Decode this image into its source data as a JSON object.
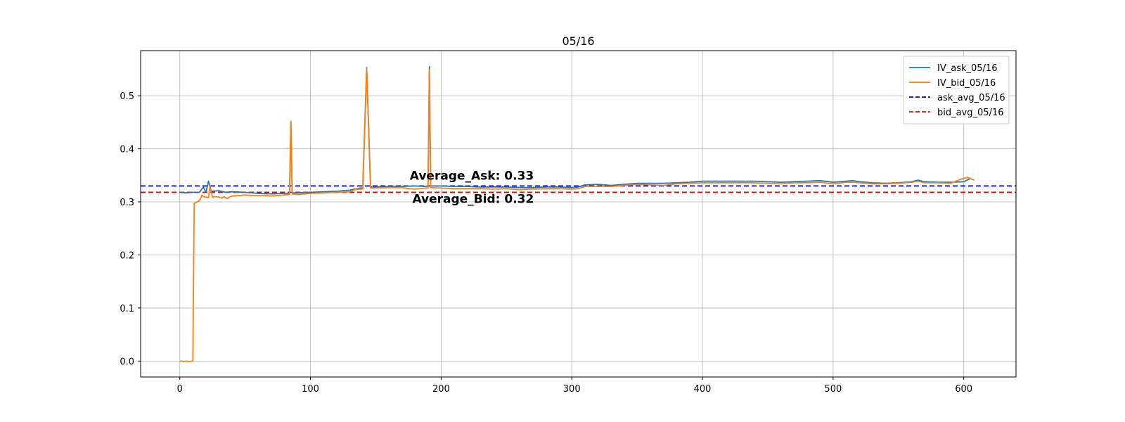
{
  "chart_data": {
    "type": "line",
    "title": "05/16",
    "xlabel": "",
    "ylabel": "",
    "xlim": [
      -30,
      640
    ],
    "ylim": [
      -0.03,
      0.585
    ],
    "xticks": [
      0,
      100,
      200,
      300,
      400,
      500,
      600
    ],
    "yticks": [
      0.0,
      0.1,
      0.2,
      0.3,
      0.4,
      0.5
    ],
    "ytick_labels": [
      "0.0",
      "0.1",
      "0.2",
      "0.3",
      "0.4",
      "0.5"
    ],
    "grid": true,
    "legend_position": "top-right",
    "series": [
      {
        "name": "IV_ask_05/16",
        "style": "solid",
        "color": "#1f77b4",
        "points": [
          [
            0,
            0.318
          ],
          [
            5,
            0.317
          ],
          [
            10,
            0.318
          ],
          [
            15,
            0.318
          ],
          [
            18,
            0.328
          ],
          [
            20,
            0.318
          ],
          [
            22,
            0.339
          ],
          [
            24,
            0.32
          ],
          [
            30,
            0.321
          ],
          [
            35,
            0.318
          ],
          [
            40,
            0.319
          ],
          [
            50,
            0.318
          ],
          [
            60,
            0.316
          ],
          [
            70,
            0.315
          ],
          [
            80,
            0.316
          ],
          [
            84,
            0.316
          ],
          [
            85,
            0.45
          ],
          [
            86,
            0.317
          ],
          [
            90,
            0.317
          ],
          [
            100,
            0.318
          ],
          [
            110,
            0.319
          ],
          [
            120,
            0.32
          ],
          [
            130,
            0.322
          ],
          [
            138,
            0.326
          ],
          [
            140,
            0.326
          ],
          [
            143,
            0.553
          ],
          [
            146,
            0.328
          ],
          [
            150,
            0.328
          ],
          [
            160,
            0.329
          ],
          [
            170,
            0.329
          ],
          [
            180,
            0.33
          ],
          [
            188,
            0.329
          ],
          [
            190,
            0.33
          ],
          [
            191,
            0.555
          ],
          [
            192,
            0.33
          ],
          [
            200,
            0.33
          ],
          [
            210,
            0.329
          ],
          [
            220,
            0.329
          ],
          [
            230,
            0.328
          ],
          [
            240,
            0.328
          ],
          [
            250,
            0.328
          ],
          [
            260,
            0.327
          ],
          [
            270,
            0.327
          ],
          [
            280,
            0.328
          ],
          [
            290,
            0.328
          ],
          [
            300,
            0.327
          ],
          [
            305,
            0.328
          ],
          [
            310,
            0.332
          ],
          [
            320,
            0.333
          ],
          [
            330,
            0.331
          ],
          [
            340,
            0.333
          ],
          [
            350,
            0.335
          ],
          [
            360,
            0.335
          ],
          [
            370,
            0.335
          ],
          [
            380,
            0.336
          ],
          [
            390,
            0.337
          ],
          [
            400,
            0.339
          ],
          [
            420,
            0.339
          ],
          [
            440,
            0.339
          ],
          [
            450,
            0.338
          ],
          [
            460,
            0.337
          ],
          [
            470,
            0.338
          ],
          [
            480,
            0.339
          ],
          [
            490,
            0.34
          ],
          [
            500,
            0.337
          ],
          [
            510,
            0.339
          ],
          [
            515,
            0.34
          ],
          [
            520,
            0.338
          ],
          [
            530,
            0.336
          ],
          [
            540,
            0.335
          ],
          [
            550,
            0.336
          ],
          [
            560,
            0.338
          ],
          [
            565,
            0.341
          ],
          [
            570,
            0.338
          ],
          [
            580,
            0.337
          ],
          [
            590,
            0.337
          ],
          [
            600,
            0.338
          ],
          [
            605,
            0.344
          ],
          [
            608,
            0.341
          ]
        ]
      },
      {
        "name": "IV_bid_05/16",
        "style": "solid",
        "color": "#ff7f0e",
        "points": [
          [
            0,
            0.0
          ],
          [
            2,
            0.0
          ],
          [
            3,
            -0.001
          ],
          [
            5,
            0.0
          ],
          [
            7,
            -0.001
          ],
          [
            9,
            0.0
          ],
          [
            10,
            0.0
          ],
          [
            11,
            0.297
          ],
          [
            13,
            0.3
          ],
          [
            15,
            0.302
          ],
          [
            17,
            0.313
          ],
          [
            18,
            0.31
          ],
          [
            20,
            0.309
          ],
          [
            22,
            0.308
          ],
          [
            23,
            0.33
          ],
          [
            25,
            0.309
          ],
          [
            27,
            0.31
          ],
          [
            30,
            0.309
          ],
          [
            32,
            0.307
          ],
          [
            34,
            0.31
          ],
          [
            36,
            0.306
          ],
          [
            38,
            0.309
          ],
          [
            40,
            0.311
          ],
          [
            45,
            0.312
          ],
          [
            50,
            0.313
          ],
          [
            55,
            0.312
          ],
          [
            60,
            0.312
          ],
          [
            65,
            0.312
          ],
          [
            70,
            0.311
          ],
          [
            75,
            0.312
          ],
          [
            80,
            0.313
          ],
          [
            84,
            0.314
          ],
          [
            85,
            0.452
          ],
          [
            86,
            0.315
          ],
          [
            90,
            0.314
          ],
          [
            95,
            0.315
          ],
          [
            100,
            0.316
          ],
          [
            110,
            0.317
          ],
          [
            120,
            0.318
          ],
          [
            130,
            0.319
          ],
          [
            135,
            0.324
          ],
          [
            140,
            0.324
          ],
          [
            143,
            0.551
          ],
          [
            146,
            0.326
          ],
          [
            150,
            0.326
          ],
          [
            160,
            0.327
          ],
          [
            170,
            0.327
          ],
          [
            175,
            0.325
          ],
          [
            180,
            0.324
          ],
          [
            188,
            0.326
          ],
          [
            190,
            0.326
          ],
          [
            191,
            0.549
          ],
          [
            192,
            0.327
          ],
          [
            200,
            0.326
          ],
          [
            210,
            0.325
          ],
          [
            220,
            0.325
          ],
          [
            230,
            0.325
          ],
          [
            240,
            0.324
          ],
          [
            250,
            0.325
          ],
          [
            260,
            0.323
          ],
          [
            270,
            0.324
          ],
          [
            280,
            0.325
          ],
          [
            290,
            0.325
          ],
          [
            300,
            0.324
          ],
          [
            305,
            0.325
          ],
          [
            310,
            0.329
          ],
          [
            320,
            0.329
          ],
          [
            330,
            0.329
          ],
          [
            340,
            0.331
          ],
          [
            350,
            0.333
          ],
          [
            360,
            0.332
          ],
          [
            370,
            0.331
          ],
          [
            380,
            0.334
          ],
          [
            390,
            0.335
          ],
          [
            400,
            0.336
          ],
          [
            420,
            0.336
          ],
          [
            440,
            0.336
          ],
          [
            450,
            0.335
          ],
          [
            460,
            0.334
          ],
          [
            470,
            0.336
          ],
          [
            480,
            0.336
          ],
          [
            490,
            0.337
          ],
          [
            500,
            0.334
          ],
          [
            510,
            0.337
          ],
          [
            515,
            0.337
          ],
          [
            520,
            0.336
          ],
          [
            530,
            0.334
          ],
          [
            540,
            0.334
          ],
          [
            550,
            0.335
          ],
          [
            560,
            0.337
          ],
          [
            565,
            0.339
          ],
          [
            570,
            0.336
          ],
          [
            580,
            0.336
          ],
          [
            590,
            0.335
          ],
          [
            598,
            0.343
          ],
          [
            603,
            0.346
          ],
          [
            608,
            0.341
          ]
        ]
      },
      {
        "name": "ask_avg_05/16",
        "style": "dashed",
        "color": "#0000cc",
        "value": 0.33
      },
      {
        "name": "bid_avg_05/16",
        "style": "dashed",
        "color": "#ee0000",
        "value": 0.318
      }
    ],
    "annotations": [
      {
        "text": "Average_Ask: 0.33",
        "x": 176,
        "y": 0.342
      },
      {
        "text": "Average_Bid: 0.32",
        "x": 178,
        "y": 0.298
      }
    ]
  }
}
